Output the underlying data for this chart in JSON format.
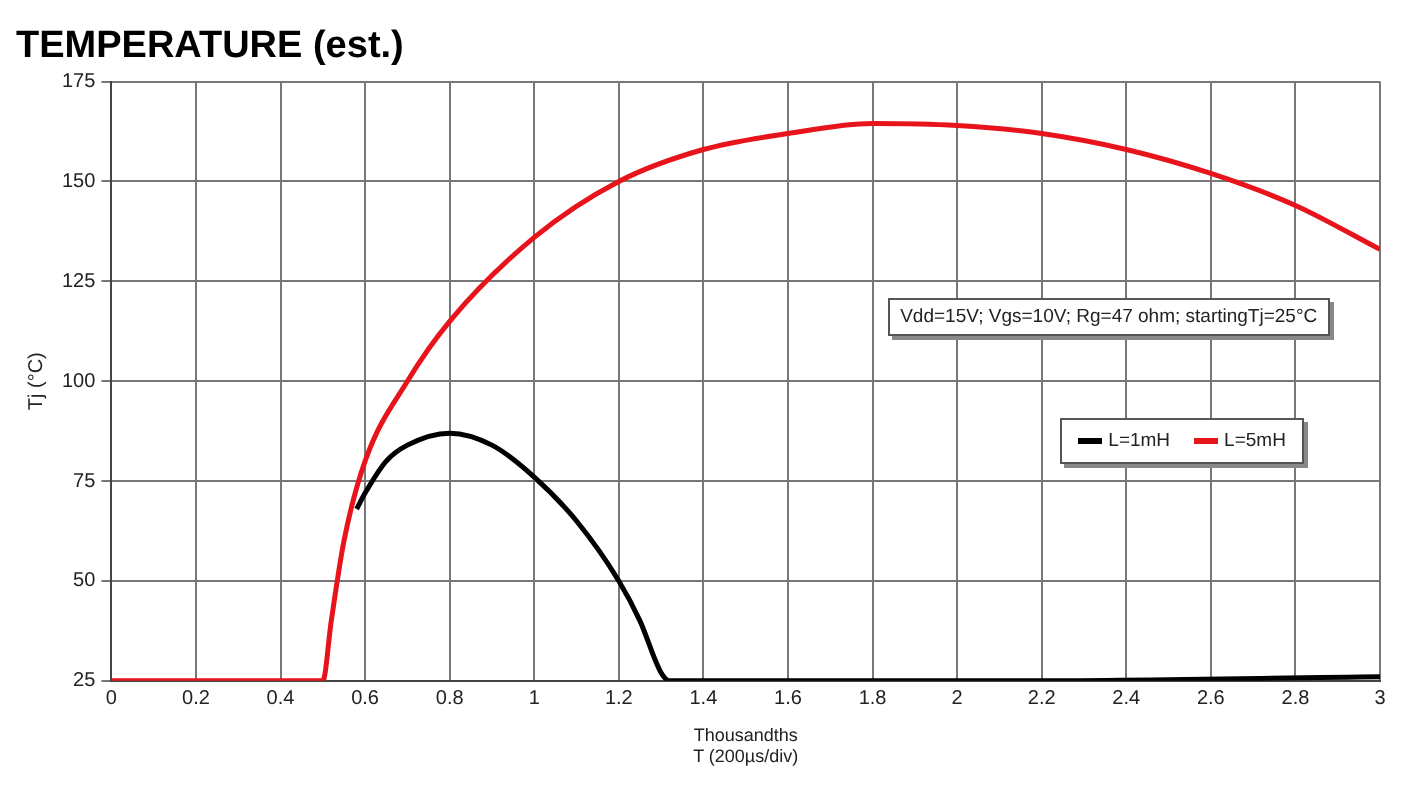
{
  "chart_data": {
    "type": "line",
    "title": "TEMPERATURE (est.)",
    "xlabel": "Thousandths\nT (200µs/div)",
    "ylabel": "Tj (°C)",
    "xlim": [
      0,
      3
    ],
    "xticks": [
      0,
      0.2,
      0.4,
      0.6,
      0.8,
      1,
      1.2,
      1.4,
      1.6,
      1.8,
      2,
      2.2,
      2.4,
      2.6,
      2.8,
      3
    ],
    "ylim": [
      25,
      175
    ],
    "yticks": [
      25,
      50,
      75,
      100,
      125,
      150,
      175
    ],
    "grid": true,
    "legend": "right",
    "marker": "none",
    "line_style": "solid",
    "annotations": [
      "Vdd=15V; Vgs=10V; Rg=47 ohm; startingTj=25°C"
    ],
    "series": [
      {
        "name": "L=1mH",
        "color": "#000000",
        "x": [
          0.58,
          0.6,
          0.65,
          0.7,
          0.8,
          0.9,
          1.0,
          1.1,
          1.2,
          1.25,
          1.3,
          1.32,
          2.15,
          3
        ],
        "values": [
          68,
          72,
          80,
          84,
          87,
          84,
          76,
          65,
          50,
          40,
          27,
          25,
          25,
          26
        ]
      },
      {
        "name": "L=5mH",
        "color": "#e8141b",
        "x": [
          0,
          0.5,
          0.52,
          0.55,
          0.6,
          0.7,
          0.8,
          1.0,
          1.2,
          1.4,
          1.6,
          1.8,
          2.0,
          2.2,
          2.4,
          2.6,
          2.8,
          3
        ],
        "values": [
          25,
          25,
          40,
          60,
          80,
          100,
          115,
          136,
          150,
          158,
          162,
          164.5,
          164,
          162,
          158,
          152,
          144,
          133
        ]
      }
    ]
  }
}
